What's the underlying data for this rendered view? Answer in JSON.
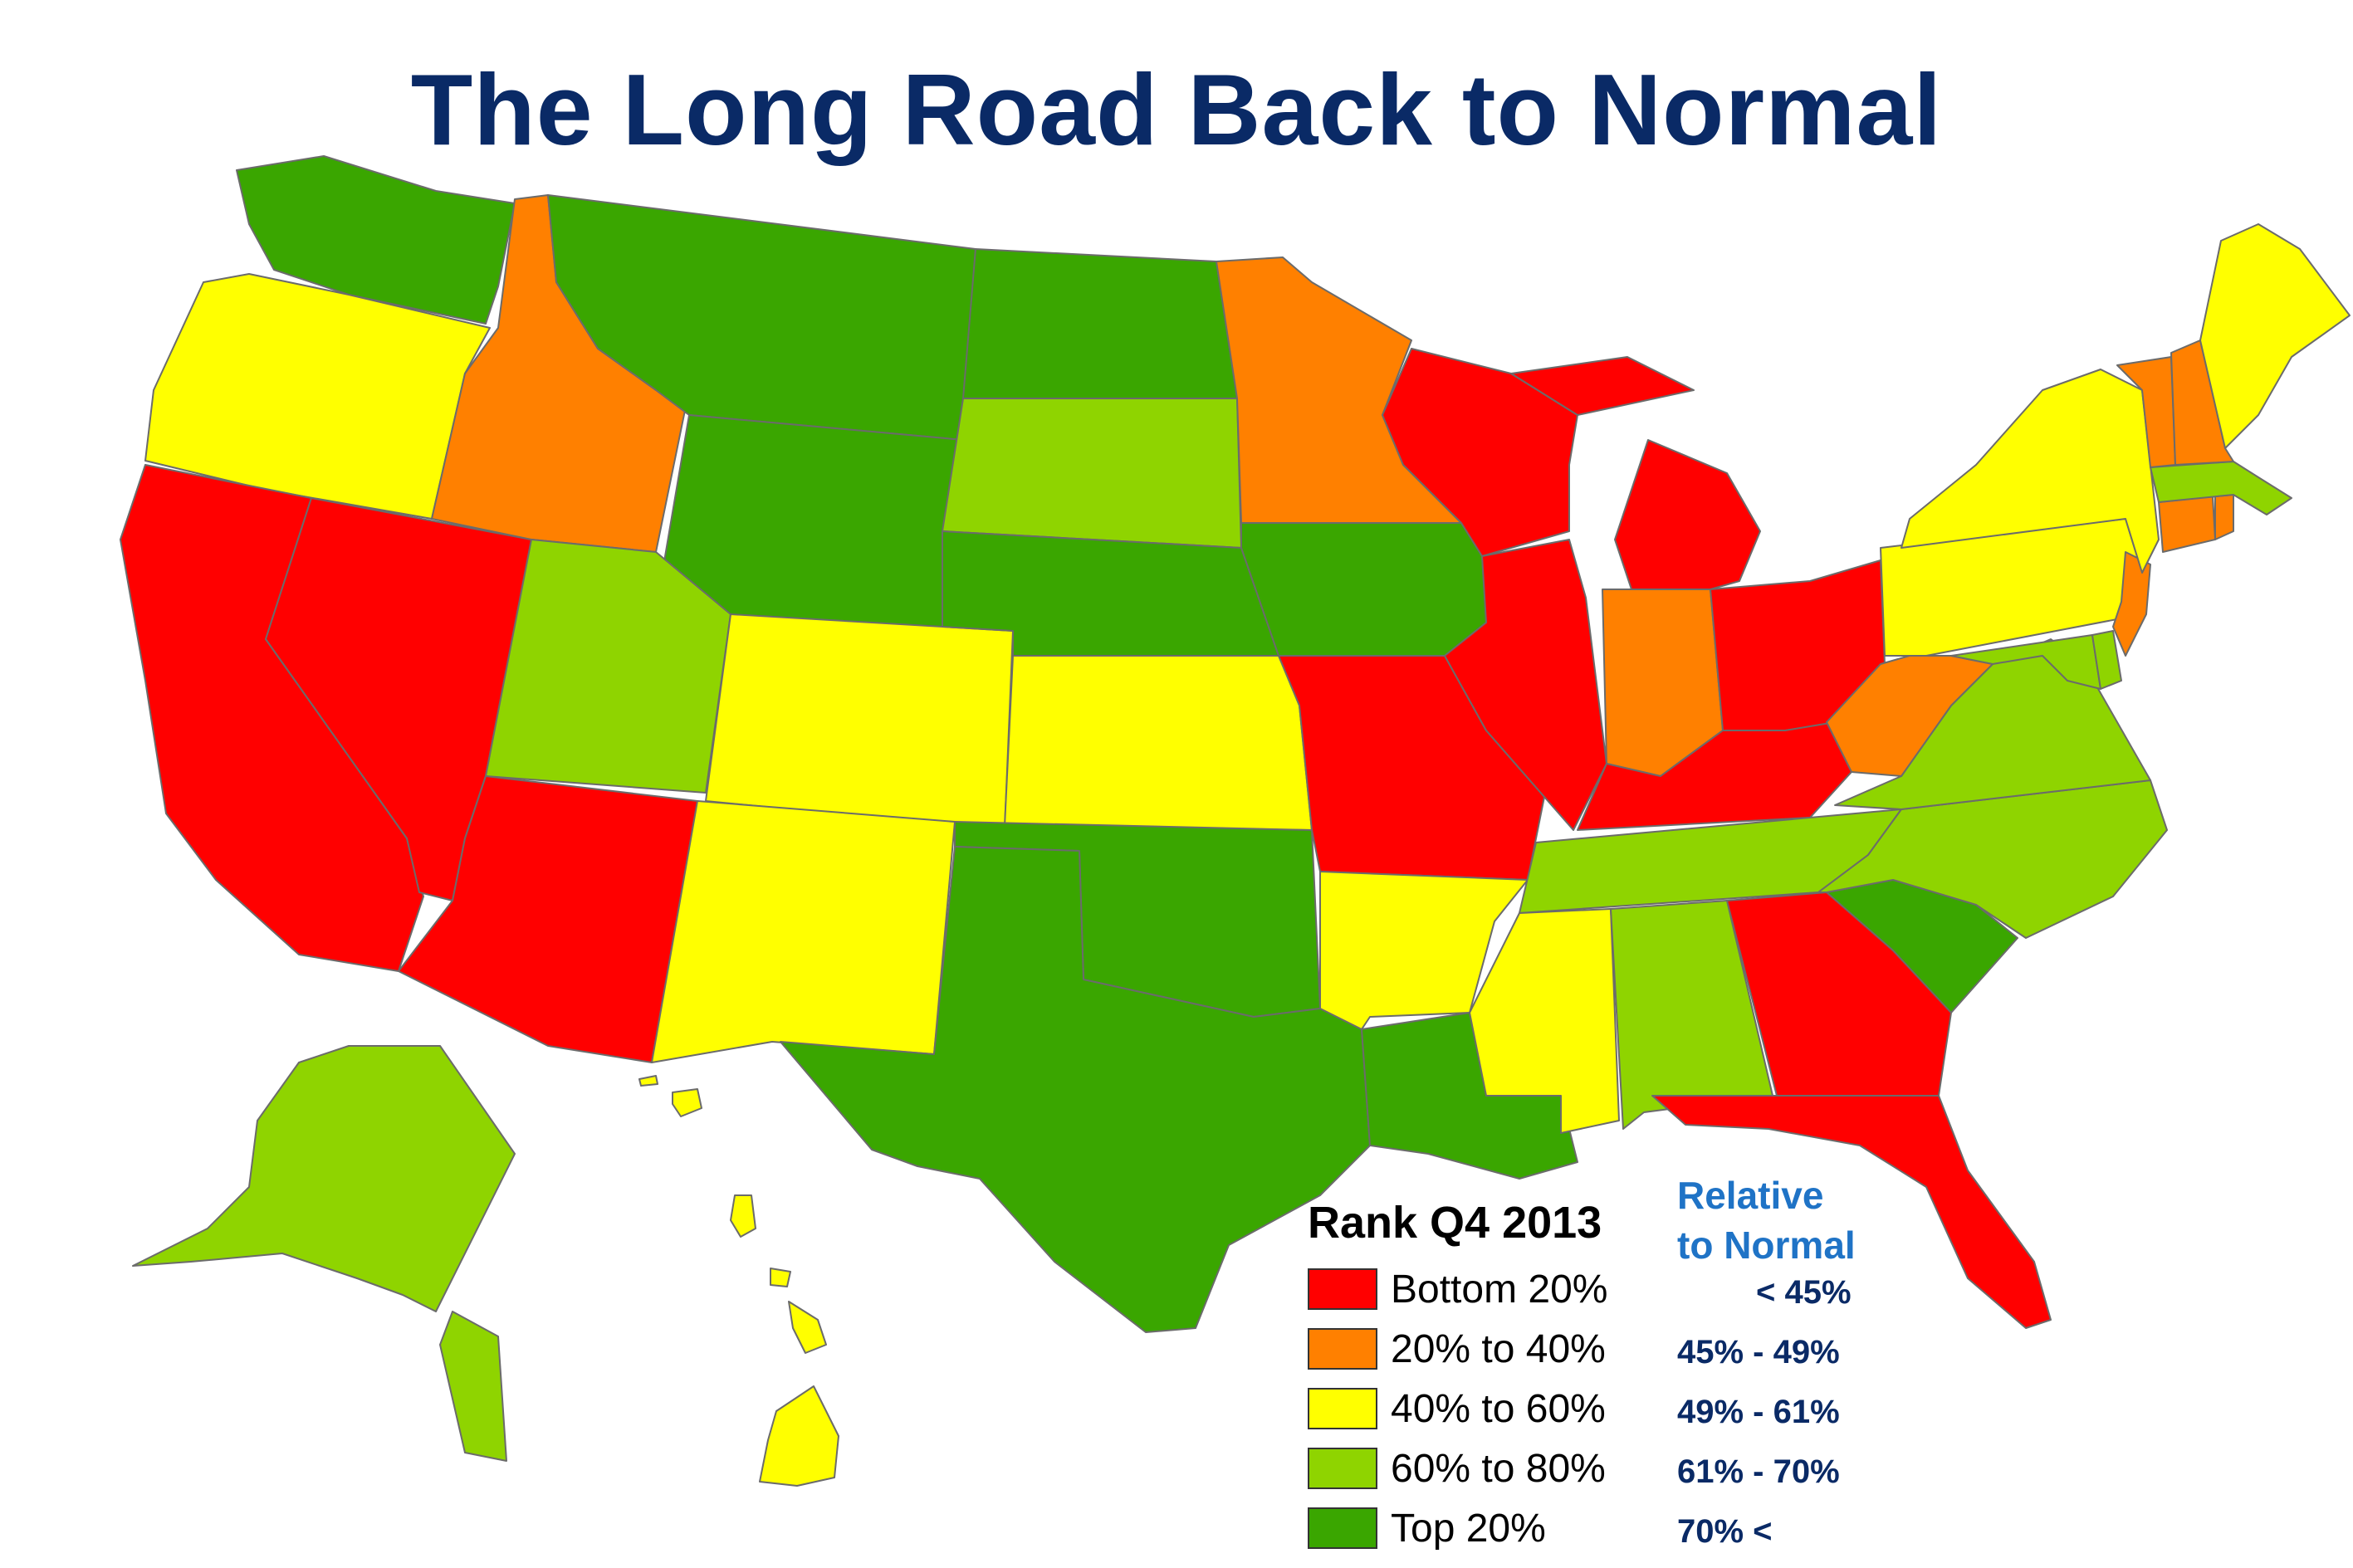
{
  "title": "The Long Road Back to Normal",
  "colors": {
    "bottom": "#ff0000",
    "low": "#ff8000",
    "mid": "#ffff00",
    "high": "#8fd400",
    "top": "#3aa600",
    "title": "#0a2a66",
    "relative": "#1f73c6"
  },
  "legend": {
    "title": "Rank Q4 2013",
    "items": [
      {
        "label": "Bottom 20%",
        "color": "#ff0000"
      },
      {
        "label": "20% to 40%",
        "color": "#ff8000"
      },
      {
        "label": "40% to 60%",
        "color": "#ffff00"
      },
      {
        "label": "60% to 80%",
        "color": "#8fd400"
      },
      {
        "label": "Top 20%",
        "color": "#3aa600"
      }
    ]
  },
  "relative": {
    "title_line1": "Relative",
    "title_line2": "to Normal",
    "values": [
      "< 45%",
      "45% - 49%",
      "49% - 61%",
      "61% - 70%",
      "70% <"
    ]
  },
  "states": {
    "WA": "top",
    "OR": "mid",
    "CA": "bottom",
    "NV": "bottom",
    "ID": "low",
    "MT": "top",
    "WY": "top",
    "UT": "high",
    "AZ": "bottom",
    "CO": "mid",
    "NM": "mid",
    "ND": "top",
    "SD": "high",
    "NE": "top",
    "KS": "mid",
    "OK": "top",
    "TX": "top",
    "MN": "low",
    "IA": "top",
    "MO": "bottom",
    "AR": "mid",
    "LA": "top",
    "WI": "bottom",
    "IL": "bottom",
    "MI": "bottom",
    "IN": "low",
    "OH": "bottom",
    "KY": "bottom",
    "TN": "high",
    "MS": "mid",
    "AL": "high",
    "GA": "bottom",
    "FL": "bottom",
    "SC": "top",
    "NC": "high",
    "VA": "high",
    "WV": "low",
    "MD": "high",
    "DE": "high",
    "PA": "mid",
    "NJ": "low",
    "NY": "mid",
    "CT": "low",
    "RI": "low",
    "MA": "high",
    "VT": "low",
    "NH": "low",
    "ME": "mid",
    "AK": "high",
    "HI": "mid"
  }
}
